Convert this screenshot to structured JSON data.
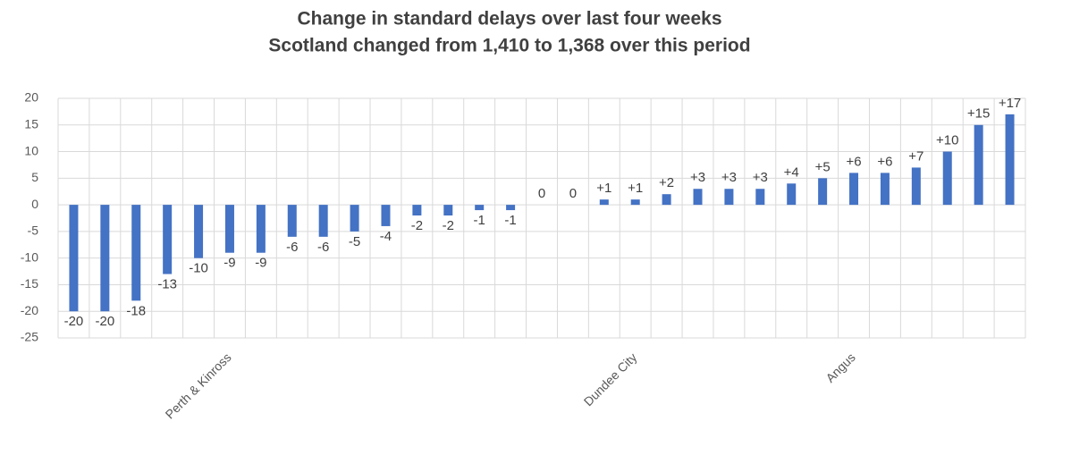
{
  "chart_data": {
    "type": "bar",
    "title": "Change in standard delays over last four weeks",
    "subtitle": "Scotland changed from 1,410 to 1,368 over this period",
    "categories": [
      null,
      null,
      null,
      null,
      null,
      "Perth & Kinross",
      null,
      null,
      null,
      null,
      null,
      null,
      null,
      null,
      null,
      null,
      null,
      null,
      "Dundee City",
      null,
      null,
      null,
      null,
      null,
      null,
      "Angus",
      null,
      null,
      null,
      null,
      null
    ],
    "values": [
      -20,
      -20,
      -18,
      -13,
      -10,
      -9,
      -9,
      -6,
      -6,
      -5,
      -4,
      -2,
      -2,
      -1,
      -1,
      0,
      0,
      1,
      1,
      2,
      3,
      3,
      3,
      4,
      5,
      6,
      6,
      7,
      10,
      15,
      17
    ],
    "value_labels": [
      "-20",
      "-20",
      "-18",
      "-13",
      "-10",
      "-9",
      "-9",
      "-6",
      "-6",
      "-5",
      "-4",
      "-2",
      "-2",
      "-1",
      "-1",
      "0",
      "0",
      "+1",
      "+1",
      "+2",
      "+3",
      "+3",
      "+3",
      "+4",
      "+5",
      "+6",
      "+6",
      "+7",
      "+10",
      "+15",
      "+17"
    ],
    "color": "#4472c4",
    "ylim": [
      -25,
      20
    ],
    "yticks": [
      -25,
      -20,
      -15,
      -10,
      -5,
      0,
      5,
      10,
      15,
      20
    ],
    "grid": true
  }
}
